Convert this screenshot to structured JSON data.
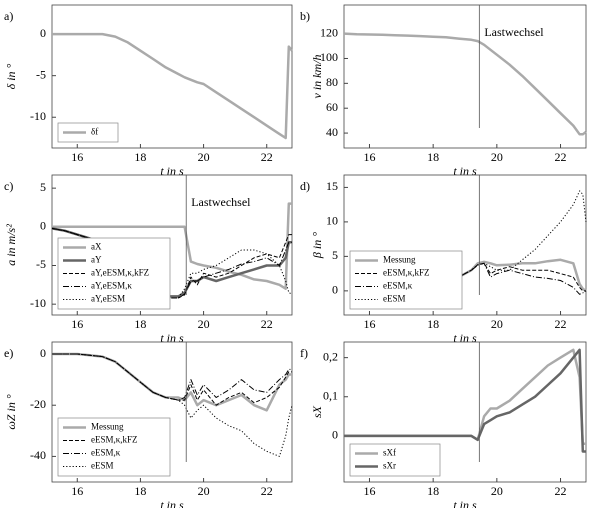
{
  "chart_data": [
    {
      "type": "line",
      "label": "a)",
      "xlabel": "t in s",
      "ylabel": "δ in °",
      "xlim": [
        15.2,
        22.8
      ],
      "ylim": [
        -13.7,
        3.5
      ],
      "xticks": [
        16,
        18,
        20,
        22
      ],
      "yticks": [
        -10,
        -5,
        0
      ],
      "legend": "lower left",
      "x": [
        15.2,
        15.6,
        16.0,
        16.4,
        16.8,
        17.2,
        17.6,
        18.0,
        18.4,
        18.8,
        19.2,
        19.4,
        19.6,
        19.8,
        20.0,
        20.4,
        20.8,
        21.2,
        21.6,
        22.0,
        22.4,
        22.6,
        22.7,
        22.8
      ],
      "series": [
        {
          "name": "δf",
          "color": "#aaaaaa",
          "width": 2.5,
          "dash": "solid",
          "values": [
            0,
            0,
            0,
            0,
            0,
            -0.3,
            -1,
            -2,
            -3,
            -4,
            -4.8,
            -5.2,
            -5.5,
            -5.8,
            -6,
            -7,
            -8,
            -9,
            -10,
            -11,
            -12,
            -12.5,
            -1.5,
            -2
          ]
        }
      ]
    },
    {
      "type": "line",
      "label": "b)",
      "xlabel": "t in s",
      "ylabel": "v in km/h",
      "xlim": [
        15.2,
        22.8
      ],
      "ylim": [
        28,
        143
      ],
      "xticks": [
        16,
        18,
        20,
        22
      ],
      "yticks": [
        40,
        60,
        80,
        100,
        120
      ],
      "event_x": 19.45,
      "annotation": "Lastwechsel",
      "x": [
        15.2,
        15.6,
        16.0,
        16.4,
        16.8,
        17.2,
        17.6,
        18.0,
        18.4,
        18.8,
        19.2,
        19.4,
        19.6,
        19.8,
        20.0,
        20.4,
        20.8,
        21.2,
        21.6,
        22.0,
        22.4,
        22.6,
        22.7,
        22.8
      ],
      "series": [
        {
          "name": null,
          "color": "#aaaaaa",
          "width": 2.5,
          "dash": "solid",
          "values": [
            120,
            119.5,
            119.3,
            119,
            118.7,
            118.4,
            118,
            117.5,
            117,
            116,
            115,
            114,
            111,
            107,
            103,
            95,
            86,
            76,
            66,
            56,
            46,
            39,
            39,
            41
          ]
        }
      ]
    },
    {
      "type": "line",
      "label": "c)",
      "xlabel": "t in s",
      "ylabel": "a in m/s²",
      "xlim": [
        15.2,
        22.8
      ],
      "ylim": [
        -11.4,
        6.7
      ],
      "xticks": [
        16,
        18,
        20,
        22
      ],
      "yticks": [
        -10,
        -5,
        0,
        5
      ],
      "event_x": 19.45,
      "annotation": "Lastwechsel",
      "legend": "lower left",
      "x": [
        15.2,
        15.6,
        16.0,
        16.4,
        16.8,
        17.2,
        17.6,
        18.0,
        18.4,
        18.8,
        19.2,
        19.4,
        19.6,
        19.8,
        20.0,
        20.4,
        20.8,
        21.2,
        21.6,
        22.0,
        22.4,
        22.6,
        22.7,
        22.8
      ],
      "series": [
        {
          "name": "aX",
          "color": "#aaaaaa",
          "width": 2.5,
          "dash": "solid",
          "values": [
            0,
            0,
            0,
            0,
            0,
            0,
            0,
            0,
            0,
            0,
            0,
            0,
            -4.5,
            -4.8,
            -5,
            -5.3,
            -5.8,
            -6.2,
            -6.8,
            -7,
            -7.5,
            -8,
            3,
            3
          ]
        },
        {
          "name": "aY",
          "color": "#666666",
          "width": 2.5,
          "dash": "solid",
          "values": [
            -0.2,
            -0.5,
            -1,
            -1.5,
            -2.5,
            -4,
            -6,
            -7.5,
            -8.5,
            -9,
            -9,
            -8.5,
            -7,
            -7,
            -6.5,
            -7,
            -6.5,
            -6,
            -5.5,
            -5,
            -5,
            -4,
            -2,
            -2
          ]
        },
        {
          "name": "aY,eESM,κ,kFZ",
          "color": "#000000",
          "width": 1,
          "dash": "dashed",
          "values": [
            -0.2,
            -0.5,
            -1,
            -1.5,
            -2.5,
            -4.2,
            -6.2,
            -7.8,
            -8.7,
            -9.2,
            -9.2,
            -8.8,
            -6.5,
            -7.5,
            -6,
            -6.5,
            -6,
            -5,
            -4,
            -3.5,
            -4,
            -2,
            -1,
            -1
          ]
        },
        {
          "name": "aY,eESM,κ",
          "color": "#000000",
          "width": 1,
          "dash": "dashdot",
          "values": [
            -0.2,
            -0.5,
            -1,
            -1.5,
            -2.5,
            -4.2,
            -6.2,
            -7.8,
            -8.5,
            -9.2,
            -9.2,
            -8.7,
            -7,
            -7,
            -6.5,
            -6,
            -5.5,
            -4.8,
            -4.5,
            -4,
            -5,
            -3,
            -2,
            -2
          ]
        },
        {
          "name": "aY,eESM",
          "color": "#000000",
          "width": 1,
          "dash": "dotted",
          "values": [
            -0.2,
            -0.5,
            -1,
            -1.5,
            -2.5,
            -4.2,
            -6.2,
            -7.8,
            -8.5,
            -9.2,
            -9.2,
            -8,
            -6,
            -6,
            -5.5,
            -5,
            -4,
            -3,
            -3,
            -3.5,
            -5,
            -7,
            -8.5,
            -8.7
          ]
        }
      ]
    },
    {
      "type": "line",
      "label": "d)",
      "xlabel": "t in s",
      "ylabel": "β in °",
      "xlim": [
        15.2,
        22.8
      ],
      "ylim": [
        -3.5,
        16.8
      ],
      "xticks": [
        16,
        18,
        20,
        22
      ],
      "yticks": [
        0,
        5,
        10,
        15
      ],
      "event_x": 19.45,
      "legend": "lower left",
      "x": [
        15.2,
        15.6,
        16.0,
        16.4,
        16.8,
        17.2,
        17.6,
        18.0,
        18.4,
        18.8,
        19.2,
        19.4,
        19.6,
        19.8,
        20.0,
        20.4,
        20.8,
        21.2,
        21.6,
        22.0,
        22.4,
        22.6,
        22.7,
        22.8
      ],
      "series": [
        {
          "name": "Messung",
          "color": "#aaaaaa",
          "width": 2.5,
          "dash": "solid",
          "values": [
            null,
            null,
            null,
            null,
            null,
            null,
            null,
            0,
            1,
            2,
            3,
            4,
            4.2,
            4,
            3.7,
            3.8,
            4,
            4,
            4.3,
            4.5,
            4,
            1,
            0.3,
            0
          ]
        },
        {
          "name": "eESM,κ,kFZ",
          "color": "#000000",
          "width": 1,
          "dash": "dashed",
          "values": [
            null,
            null,
            null,
            null,
            null,
            null,
            null,
            0,
            1,
            2,
            3,
            3.8,
            4,
            2.5,
            3,
            3.5,
            3,
            3,
            3,
            2.5,
            2,
            0.5,
            0,
            0
          ]
        },
        {
          "name": "eESM,κ",
          "color": "#000000",
          "width": 1,
          "dash": "dashdot",
          "values": [
            null,
            null,
            null,
            null,
            null,
            null,
            null,
            0,
            1,
            2,
            3,
            3.7,
            4,
            2,
            2.5,
            3,
            2.5,
            2,
            1.8,
            1.5,
            0.5,
            -0.5,
            -0.3,
            0
          ]
        },
        {
          "name": "eESM",
          "color": "#000000",
          "width": 1,
          "dash": "dotted",
          "values": [
            null,
            null,
            null,
            null,
            null,
            null,
            null,
            0,
            1,
            2,
            3,
            3.8,
            4,
            3.5,
            3,
            3,
            4.5,
            6,
            8,
            10,
            12.5,
            14.5,
            14,
            10
          ]
        }
      ]
    },
    {
      "type": "line",
      "label": "e)",
      "xlabel": "t in s",
      "ylabel": "ωZ in °",
      "xlim": [
        15.2,
        22.8
      ],
      "ylim": [
        -50,
        4.7
      ],
      "xticks": [
        16,
        18,
        20,
        22
      ],
      "yticks": [
        -40,
        -20,
        0
      ],
      "event_x": 19.45,
      "legend": "lower left",
      "x": [
        15.2,
        15.6,
        16.0,
        16.4,
        16.8,
        17.2,
        17.6,
        18.0,
        18.4,
        18.8,
        19.2,
        19.4,
        19.6,
        19.8,
        20.0,
        20.4,
        20.8,
        21.2,
        21.6,
        22.0,
        22.4,
        22.6,
        22.7,
        22.8
      ],
      "series": [
        {
          "name": "Messung",
          "color": "#aaaaaa",
          "width": 2.5,
          "dash": "solid",
          "values": [
            0,
            0,
            0,
            -0.5,
            -1,
            -3,
            -7,
            -11,
            -15,
            -17,
            -17,
            -18,
            -15,
            -20,
            -18,
            -20,
            -18,
            -16,
            -20,
            -22,
            -12,
            -10,
            -8,
            -8
          ]
        },
        {
          "name": "eESM,κ,kFZ",
          "color": "#000000",
          "width": 1,
          "dash": "dashed",
          "values": [
            0,
            0,
            0,
            -0.5,
            -1,
            -3,
            -7,
            -11,
            -15,
            -17,
            -18,
            -18,
            -12,
            -18,
            -14,
            -20,
            -17,
            -15,
            -19,
            -17,
            -13,
            -9,
            -7,
            -7
          ]
        },
        {
          "name": "eESM,κ",
          "color": "#000000",
          "width": 1,
          "dash": "dashdot",
          "values": [
            0,
            0,
            0,
            -0.5,
            -1,
            -3,
            -7,
            -11,
            -15,
            -17,
            -18,
            -17,
            -10,
            -16,
            -12,
            -17,
            -14,
            -10,
            -14,
            -15,
            -10,
            -8,
            -6,
            -6
          ]
        },
        {
          "name": "eESM",
          "color": "#000000",
          "width": 1,
          "dash": "dotted",
          "values": [
            0,
            0,
            0,
            -0.5,
            -1,
            -3,
            -7,
            -11,
            -15,
            -17,
            -18,
            -20,
            -25,
            -22,
            -20,
            -25,
            -28,
            -30,
            -35,
            -38,
            -40,
            -32,
            -25,
            -20
          ]
        }
      ]
    },
    {
      "type": "line",
      "label": "f)",
      "xlabel": "t in s",
      "ylabel": "sX",
      "xlim": [
        15.2,
        22.8
      ],
      "ylim": [
        -0.118,
        0.24
      ],
      "xticks": [
        16,
        18,
        20,
        22
      ],
      "yticks": [
        0,
        {
          "value": 0.1,
          "label": "0,1"
        },
        {
          "value": 0.2,
          "label": "0,2"
        }
      ],
      "event_x": 19.45,
      "legend": "lower left",
      "x": [
        15.2,
        15.6,
        16.0,
        16.4,
        16.8,
        17.2,
        17.6,
        18.0,
        18.4,
        18.8,
        19.2,
        19.4,
        19.6,
        19.8,
        20.0,
        20.4,
        20.8,
        21.2,
        21.6,
        22.0,
        22.4,
        22.6,
        22.7,
        22.8
      ],
      "series": [
        {
          "name": "sXf",
          "color": "#aaaaaa",
          "width": 2.5,
          "dash": "solid",
          "values": [
            0,
            0,
            0,
            0,
            0,
            0,
            0,
            0,
            0,
            0,
            0,
            -0.01,
            0.05,
            0.07,
            0.07,
            0.09,
            0.12,
            0.15,
            0.18,
            0.2,
            0.22,
            0.15,
            -0.02,
            -0.02
          ]
        },
        {
          "name": "sXr",
          "color": "#666666",
          "width": 2.5,
          "dash": "solid",
          "values": [
            0,
            0,
            0,
            0,
            0,
            0,
            0,
            0,
            0,
            0,
            0,
            -0.01,
            0.03,
            0.04,
            0.05,
            0.06,
            0.08,
            0.1,
            0.13,
            0.16,
            0.2,
            0.22,
            -0.04,
            -0.04
          ]
        }
      ]
    }
  ]
}
